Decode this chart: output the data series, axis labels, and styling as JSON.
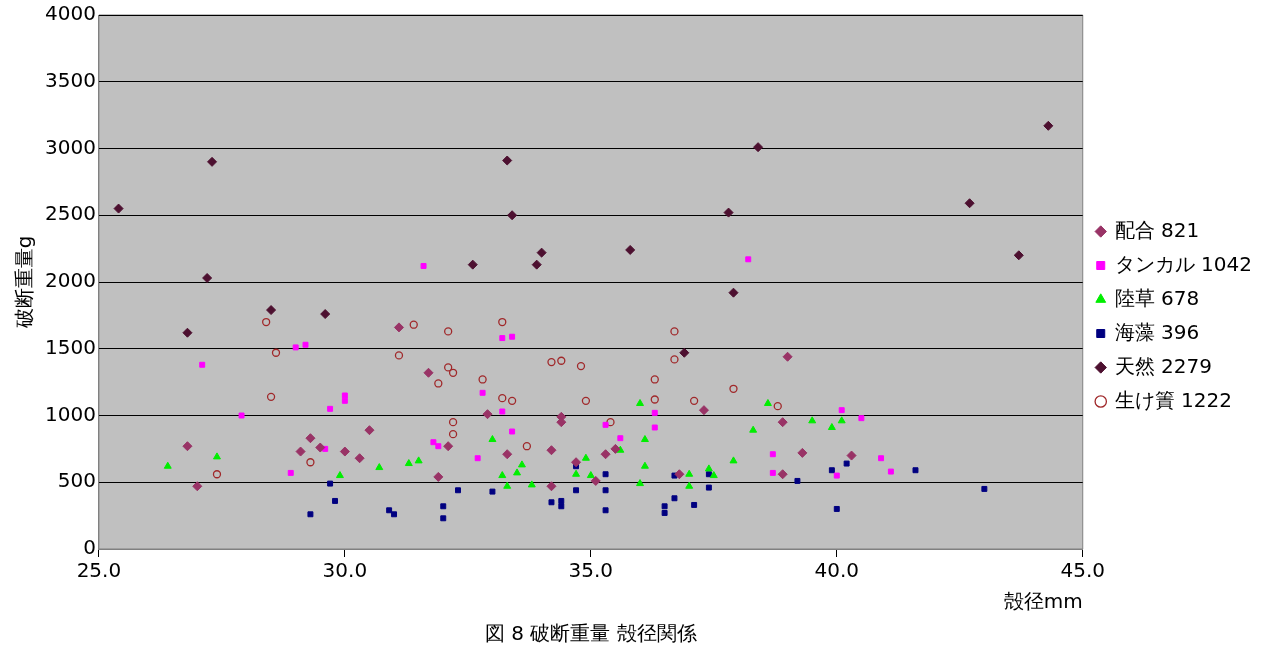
{
  "chart_data": {
    "type": "scatter",
    "xlabel": "殻径mm",
    "ylabel": "破断重量g",
    "annotations": [
      "図 8 破断重量 殻径関係"
    ],
    "xlim": [
      25,
      45
    ],
    "xticks": [
      {
        "value": 25,
        "label": "25.0"
      },
      {
        "value": 30,
        "label": "30.0"
      },
      {
        "value": 35,
        "label": "35.0"
      },
      {
        "value": 40,
        "label": "40.0"
      },
      {
        "value": 45,
        "label": "45.0"
      }
    ],
    "ylim": [
      0,
      4000
    ],
    "yticks": [
      0,
      500,
      1000,
      1500,
      2000,
      2500,
      3000,
      3500,
      4000
    ],
    "grid": "y",
    "legend": "right",
    "series": [
      {
        "name": "配合 821",
        "color": "#993366",
        "marker": "diamond",
        "x": [
          31.1,
          31.7,
          30.5,
          29.3,
          26.8,
          29.1,
          29.5,
          30.0,
          30.3,
          32.1,
          31.9,
          27.0,
          32.9,
          34.4,
          34.4,
          33.3,
          34.2,
          35.3,
          35.5,
          34.7,
          34.2,
          35.1,
          36.8,
          37.3,
          38.9,
          39.0,
          38.9,
          39.3,
          40.3
        ],
        "values": [
          1660,
          1320,
          890,
          830,
          770,
          730,
          760,
          730,
          680,
          770,
          540,
          470,
          1010,
          990,
          950,
          710,
          740,
          710,
          750,
          650,
          470,
          510,
          560,
          1040,
          950,
          1440,
          560,
          720,
          700
        ]
      },
      {
        "name": "タンカル 1042",
        "color": "#ff00ff",
        "marker": "square",
        "x": [
          31.6,
          29.0,
          29.2,
          27.1,
          30.0,
          30.0,
          29.7,
          27.9,
          31.8,
          31.9,
          29.6,
          28.9,
          38.2,
          33.2,
          33.4,
          32.8,
          33.2,
          36.3,
          36.3,
          35.3,
          33.4,
          35.6,
          32.7,
          38.7,
          38.7,
          40.1,
          40.5,
          40.9,
          41.1,
          40.0
        ],
        "values": [
          2120,
          1510,
          1530,
          1380,
          1150,
          1110,
          1050,
          1000,
          800,
          770,
          750,
          570,
          2170,
          1580,
          1590,
          1170,
          1030,
          1020,
          910,
          930,
          880,
          830,
          680,
          710,
          570,
          1040,
          980,
          680,
          580,
          550
        ]
      },
      {
        "name": "陸草 678",
        "color": "#00ee00",
        "marker": "triangle",
        "x": [
          26.4,
          27.4,
          29.9,
          30.7,
          31.3,
          31.5,
          33.0,
          33.6,
          33.5,
          33.2,
          33.3,
          33.8,
          34.7,
          34.9,
          35.0,
          35.6,
          36.1,
          36.1,
          36.0,
          36.0,
          37.0,
          37.0,
          37.4,
          37.5,
          37.9,
          38.3,
          38.6,
          39.5,
          39.9,
          40.1
        ],
        "values": [
          620,
          690,
          550,
          610,
          640,
          660,
          820,
          630,
          570,
          550,
          470,
          480,
          560,
          680,
          550,
          740,
          820,
          620,
          1090,
          490,
          560,
          470,
          600,
          550,
          660,
          890,
          1090,
          960,
          910,
          960
        ]
      },
      {
        "name": "海藻 396",
        "color": "#000080",
        "marker": "square",
        "x": [
          29.7,
          29.8,
          29.3,
          30.9,
          31.0,
          32.0,
          32.0,
          32.3,
          33.0,
          34.2,
          34.4,
          34.4,
          34.7,
          34.7,
          35.3,
          35.3,
          35.3,
          36.5,
          36.5,
          36.7,
          36.7,
          37.1,
          37.4,
          37.4,
          39.2,
          39.9,
          40.2,
          40.0,
          41.6,
          43.0
        ],
        "values": [
          490,
          360,
          260,
          290,
          260,
          320,
          230,
          440,
          430,
          350,
          360,
          320,
          620,
          440,
          560,
          440,
          290,
          320,
          270,
          550,
          380,
          330,
          560,
          460,
          510,
          590,
          640,
          300,
          590,
          450
        ]
      },
      {
        "name": "天然 2279",
        "color": "#4d1030",
        "marker": "diamond",
        "x": [
          25.4,
          27.3,
          27.2,
          26.8,
          28.5,
          29.6,
          33.3,
          33.4,
          32.6,
          33.9,
          34.0,
          35.8,
          37.8,
          38.4,
          37.9,
          36.9,
          42.7,
          43.7,
          44.3
        ],
        "values": [
          2550,
          2900,
          2030,
          1620,
          1790,
          1760,
          2910,
          2500,
          2130,
          2130,
          2220,
          2240,
          2520,
          3010,
          1920,
          1470,
          2590,
          2200,
          3170
        ]
      },
      {
        "name": "生け簀 1222",
        "color": "#a0282a",
        "marker": "circle",
        "x": [
          28.4,
          28.6,
          31.4,
          32.1,
          31.1,
          32.1,
          32.2,
          31.9,
          28.5,
          32.2,
          32.2,
          29.3,
          27.4,
          33.2,
          36.7,
          36.7,
          34.2,
          34.4,
          34.8,
          32.8,
          36.3,
          37.9,
          33.2,
          33.4,
          34.9,
          36.3,
          37.1,
          38.8,
          35.4,
          33.7
        ],
        "values": [
          1700,
          1470,
          1680,
          1630,
          1450,
          1360,
          1320,
          1240,
          1140,
          950,
          860,
          650,
          560,
          1700,
          1630,
          1420,
          1400,
          1410,
          1370,
          1270,
          1270,
          1200,
          1130,
          1110,
          1110,
          1120,
          1110,
          1070,
          950,
          770
        ]
      }
    ]
  }
}
